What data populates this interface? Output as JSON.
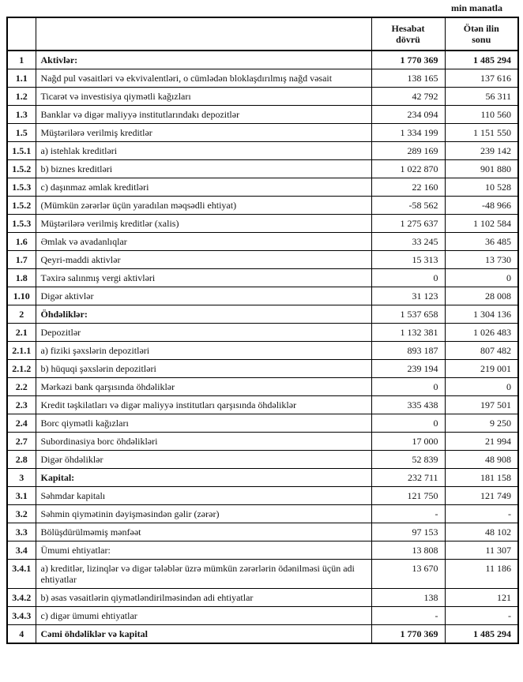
{
  "unit_note": "min manatla",
  "table": {
    "headers": {
      "id": "",
      "label": "",
      "current": "Hesabat\ndövrü",
      "previous": "Ötən ilin\nsonu"
    },
    "rows": [
      {
        "id": "1",
        "label": "Aktivlər:",
        "current": "1 770 369",
        "previous": "1 485 294",
        "emphasis": "full"
      },
      {
        "id": "1.1",
        "label": "Nağd pul vəsaitləri və ekvivalentləri, o cümlədən bloklaşdırılmış nağd vəsait",
        "current": "138 165",
        "previous": "137 616"
      },
      {
        "id": "1.2",
        "label": "Ticarət və investisiya qiymətli kağızları",
        "current": "42 792",
        "previous": "56 311"
      },
      {
        "id": "1.3",
        "label": "Banklar və digər maliyyə institutlarındakı depozitlər",
        "current": "234 094",
        "previous": "110 560"
      },
      {
        "id": "1.5",
        "label": "Müştərilərə verilmiş kreditlər",
        "current": "1 334 199",
        "previous": "1 151 550"
      },
      {
        "id": "1.5.1",
        "label": "a) istehlak kreditləri",
        "current": "289 169",
        "previous": "239 142"
      },
      {
        "id": "1.5.2",
        "label": "b) biznes kreditləri",
        "current": "1 022 870",
        "previous": "901 880"
      },
      {
        "id": "1.5.3",
        "label": "c) daşınmaz əmlak kreditləri",
        "current": "22 160",
        "previous": "10 528"
      },
      {
        "id": "1.5.2",
        "label": "(Mümkün zərərlər üçün yaradılan məqsədli ehtiyat)",
        "current": "-58 562",
        "previous": "-48 966"
      },
      {
        "id": "1.5.3",
        "label": "Müştərilərə verilmiş kreditlər (xalis)",
        "current": "1 275 637",
        "previous": "1 102 584"
      },
      {
        "id": "1.6",
        "label": "Əmlak və avadanlıqlar",
        "current": "33 245",
        "previous": "36 485"
      },
      {
        "id": "1.7",
        "label": "Qeyri-maddi aktivlər",
        "current": "15 313",
        "previous": "13 730"
      },
      {
        "id": "1.8",
        "label": "Təxirə salınmış vergi aktivləri",
        "current": "0",
        "previous": "0"
      },
      {
        "id": "1.10",
        "label": "Digər aktivlər",
        "current": "31 123",
        "previous": "28 008"
      },
      {
        "id": "2",
        "label": "Öhdəliklər:",
        "current": "1 537 658",
        "previous": "1 304 136",
        "emphasis": "label"
      },
      {
        "id": "2.1",
        "label": "Depozitlər",
        "current": "1 132 381",
        "previous": "1 026 483"
      },
      {
        "id": "2.1.1",
        "label": "a) fiziki şəxslərin depozitləri",
        "current": "893 187",
        "previous": "807 482"
      },
      {
        "id": "2.1.2",
        "label": "b) hüquqi şəxslərin depozitləri",
        "current": "239 194",
        "previous": "219 001"
      },
      {
        "id": "2.2",
        "label": "Mərkəzi bank qarşısında öhdəliklər",
        "current": "0",
        "previous": "0"
      },
      {
        "id": "2.3",
        "label": "Kredit təşkilatları və digər maliyyə institutları qarşısında öhdəliklər",
        "current": "335 438",
        "previous": "197 501"
      },
      {
        "id": "2.4",
        "label": "Borc qiymətli kağızları",
        "current": "0",
        "previous": "9 250"
      },
      {
        "id": "2.7",
        "label": "Subordinasiya borc öhdəlikləri",
        "current": "17 000",
        "previous": "21 994"
      },
      {
        "id": "2.8",
        "label": "Digər öhdəliklər",
        "current": "52 839",
        "previous": "48 908"
      },
      {
        "id": "3",
        "label": "Kapital:",
        "current": "232 711",
        "previous": "181 158",
        "emphasis": "label"
      },
      {
        "id": "3.1",
        "label": "Səhmdar kapitalı",
        "current": "121 750",
        "previous": "121 749"
      },
      {
        "id": "3.2",
        "label": "Səhmin qiymətinin dəyişməsindən gəlir (zərər)",
        "current": "-",
        "previous": "-"
      },
      {
        "id": "3.3",
        "label": "Bölüşdürülməmiş mənfəət",
        "current": "97 153",
        "previous": "48 102"
      },
      {
        "id": "3.4",
        "label": "Ümumi ehtiyatlar:",
        "current": "13 808",
        "previous": "11 307"
      },
      {
        "id": "3.4.1",
        "label": "a) kreditlər, lizinqlər və digər tələblər üzrə mümkün zərərlərin ödənilməsi üçün adi ehtiyatlar",
        "current": "13 670",
        "previous": "11 186"
      },
      {
        "id": "3.4.2",
        "label": "b) əsas vəsaitlərin qiymətləndirilməsindən adi ehtiyatlar",
        "current": "138",
        "previous": "121"
      },
      {
        "id": "3.4.3",
        "label": "c) digər ümumi ehtiyatlar",
        "current": "-",
        "previous": "-"
      },
      {
        "id": "4",
        "label": "Cəmi öhdəliklər və kapital",
        "current": "1 770 369",
        "previous": "1 485 294",
        "emphasis": "full"
      }
    ]
  }
}
